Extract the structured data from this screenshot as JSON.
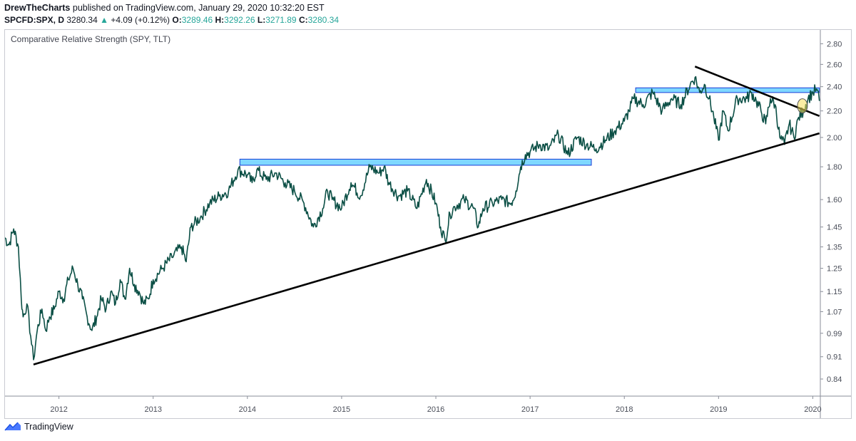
{
  "header": {
    "author": "DrewTheCharts",
    "published_text": "published on TradingView.com, January 29, 2020 10:32:20 EST",
    "symbol": "SPCFD:SPX, D",
    "last": "3280.34",
    "arrow": "▲",
    "change": "+4.09 (+0.12%)",
    "o_label": "O:",
    "o_value": "3289.46",
    "h_label": "H:",
    "h_value": "3292.26",
    "l_label": "L:",
    "l_value": "3271.89",
    "c_label": "C:",
    "c_value": "3280.34"
  },
  "footer": {
    "brand": "TradingView"
  },
  "colors": {
    "series": "#0b4f45",
    "zone_fill": "#7fd8ff",
    "zone_stroke": "#1a3dd6",
    "trendline": "#000000",
    "up": "#26a69a"
  },
  "chart_data": {
    "type": "line",
    "title": "Comparative Relative Strength (SPY, TLT)",
    "y_scale": "log",
    "ylim": [
      0.79,
      2.95
    ],
    "xlim": [
      2011.42,
      2020.08
    ],
    "grid": false,
    "y_ticks": [
      2.8,
      2.6,
      2.4,
      2.2,
      2.0,
      1.8,
      1.6,
      1.45,
      1.35,
      1.25,
      1.15,
      1.07,
      0.99,
      0.91,
      0.84
    ],
    "y_tick_labels": [
      "2.80",
      "2.60",
      "2.40",
      "2.20",
      "2.00",
      "1.80",
      "1.60",
      "1.45",
      "1.35",
      "1.25",
      "1.15",
      "1.07",
      "0.99",
      "0.91",
      "0.84"
    ],
    "x_ticks": [
      2012,
      2013,
      2014,
      2015,
      2016,
      2017,
      2018,
      2019,
      2020
    ],
    "x_tick_labels": [
      "2012",
      "2013",
      "2014",
      "2015",
      "2016",
      "2017",
      "2018",
      "2019",
      "2020"
    ],
    "series": [
      {
        "x": [
          2011.42,
          2011.47,
          2011.52,
          2011.57,
          2011.6,
          2011.62,
          2011.66,
          2011.7,
          2011.73,
          2011.77,
          2011.82,
          2011.86,
          2011.9,
          2011.95,
          2012.0,
          2012.05,
          2012.1,
          2012.15,
          2012.2,
          2012.25,
          2012.3,
          2012.35,
          2012.4,
          2012.45,
          2012.5,
          2012.55,
          2012.6,
          2012.65,
          2012.7,
          2012.75,
          2012.8,
          2012.85,
          2012.9,
          2012.95,
          2013.0,
          2013.1,
          2013.2,
          2013.3,
          2013.35,
          2013.4,
          2013.5,
          2013.6,
          2013.7,
          2013.8,
          2013.9,
          2014.0,
          2014.05,
          2014.1,
          2014.2,
          2014.3,
          2014.4,
          2014.5,
          2014.6,
          2014.7,
          2014.8,
          2014.85,
          2014.9,
          2015.0,
          2015.1,
          2015.2,
          2015.3,
          2015.4,
          2015.45,
          2015.5,
          2015.6,
          2015.7,
          2015.8,
          2015.9,
          2016.0,
          2016.05,
          2016.1,
          2016.15,
          2016.2,
          2016.3,
          2016.4,
          2016.45,
          2016.5,
          2016.6,
          2016.7,
          2016.8,
          2016.85,
          2016.9,
          2016.95,
          2017.0,
          2017.1,
          2017.2,
          2017.3,
          2017.4,
          2017.5,
          2017.6,
          2017.7,
          2017.8,
          2017.9,
          2018.0,
          2018.05,
          2018.1,
          2018.2,
          2018.3,
          2018.4,
          2018.5,
          2018.6,
          2018.7,
          2018.75,
          2018.8,
          2018.85,
          2018.9,
          2018.95,
          2019.0,
          2019.05,
          2019.1,
          2019.2,
          2019.3,
          2019.35,
          2019.4,
          2019.45,
          2019.5,
          2019.55,
          2019.6,
          2019.65,
          2019.7,
          2019.75,
          2019.8,
          2019.85,
          2019.9,
          2019.95,
          2020.0,
          2020.04,
          2020.07
        ],
        "y": [
          1.4,
          1.36,
          1.44,
          1.35,
          1.12,
          1.05,
          1.1,
          0.98,
          0.9,
          1.0,
          1.08,
          1.0,
          1.05,
          1.08,
          1.15,
          1.12,
          1.2,
          1.25,
          1.18,
          1.12,
          1.05,
          1.0,
          1.05,
          1.12,
          1.08,
          1.15,
          1.1,
          1.2,
          1.12,
          1.25,
          1.18,
          1.15,
          1.1,
          1.12,
          1.2,
          1.25,
          1.3,
          1.35,
          1.28,
          1.45,
          1.5,
          1.58,
          1.62,
          1.65,
          1.78,
          1.75,
          1.7,
          1.78,
          1.72,
          1.76,
          1.7,
          1.65,
          1.58,
          1.45,
          1.55,
          1.65,
          1.6,
          1.55,
          1.7,
          1.62,
          1.8,
          1.76,
          1.8,
          1.7,
          1.62,
          1.65,
          1.55,
          1.72,
          1.58,
          1.45,
          1.38,
          1.52,
          1.56,
          1.6,
          1.55,
          1.45,
          1.55,
          1.58,
          1.6,
          1.58,
          1.65,
          1.8,
          1.88,
          1.9,
          1.95,
          1.92,
          2.02,
          1.88,
          2.0,
          1.95,
          1.92,
          1.98,
          2.05,
          2.12,
          2.2,
          2.3,
          2.25,
          2.35,
          2.2,
          2.3,
          2.25,
          2.42,
          2.48,
          2.35,
          2.42,
          2.3,
          2.15,
          1.98,
          2.2,
          2.05,
          2.3,
          2.3,
          2.35,
          2.28,
          2.2,
          2.1,
          2.3,
          2.25,
          2.0,
          1.95,
          2.1,
          2.0,
          2.15,
          2.2,
          2.3,
          2.35,
          2.38,
          2.28
        ]
      }
    ],
    "annotations": {
      "resistance_zones": [
        {
          "x0": 2013.92,
          "x1": 2017.65,
          "y_low": 1.81,
          "y_high": 1.85
        },
        {
          "x0": 2018.12,
          "x1": 2020.07,
          "y_low": 2.35,
          "y_high": 2.39
        }
      ],
      "trendlines": [
        {
          "x0": 2011.73,
          "y0": 0.885,
          "x1": 2020.07,
          "y1": 2.03
        },
        {
          "x0": 2018.75,
          "y0": 2.58,
          "x1": 2020.07,
          "y1": 2.16
        }
      ],
      "marker": {
        "x": 2019.89,
        "y": 2.24
      }
    }
  }
}
